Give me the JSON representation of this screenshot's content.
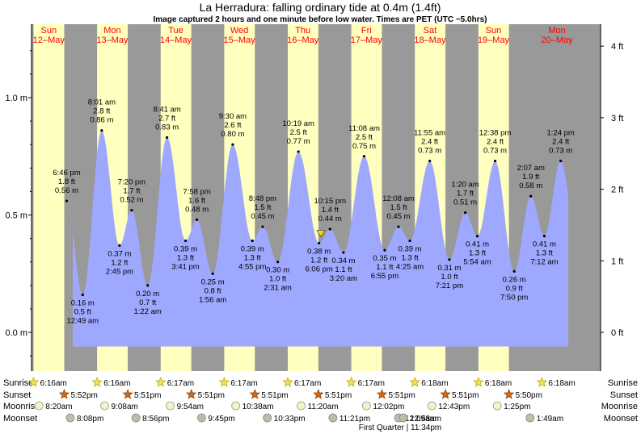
{
  "title": "La Herradura: falling  ordinary tide at 0.4m (1.4ft)",
  "subtitle": "Image captured 2 hours and one minute before low water. Times are PET (UTC −5.0hrs)",
  "colors": {
    "day": "#ffffc0",
    "night": "#999999",
    "tide": "#9fa8ff",
    "date_text": "#ff0000",
    "marker": "#f0e000"
  },
  "days": [
    {
      "name": "Sun",
      "date": "12–May"
    },
    {
      "name": "Mon",
      "date": "13–May"
    },
    {
      "name": "Tue",
      "date": "14–May"
    },
    {
      "name": "Wed",
      "date": "15–May"
    },
    {
      "name": "Thu",
      "date": "16–May"
    },
    {
      "name": "Fri",
      "date": "17–May"
    },
    {
      "name": "Sat",
      "date": "18–May"
    },
    {
      "name": "Sun",
      "date": "19–May"
    },
    {
      "name": "Mon",
      "date": "20–May"
    }
  ],
  "chart_data": {
    "type": "area",
    "x_unit": "hours from 00:00 Sun 12-May (PET)",
    "y_unit": "m",
    "xlim": [
      0,
      216
    ],
    "ylim": [
      -0.15,
      1.3
    ],
    "left_axis": {
      "ticks": [
        0.0,
        0.5,
        1.0
      ],
      "labels": [
        "0.0 m",
        "0.5 m",
        "1.0 m"
      ]
    },
    "right_axis": {
      "ticks_ft": [
        0,
        1,
        2,
        3,
        4
      ],
      "labels": [
        "0 ft",
        "1 ft",
        "2 ft",
        "3 ft",
        "4 ft"
      ]
    },
    "current_level_m": 0.4,
    "tide_events": [
      {
        "day": 0,
        "time": "6:46 pm",
        "ft": "1.8 ft",
        "m": 0.56,
        "type": "high"
      },
      {
        "day": 1,
        "time": "12:49 am",
        "ft": "0.5 ft",
        "m": 0.16,
        "type": "low"
      },
      {
        "day": 1,
        "time": "8:01 am",
        "ft": "2.8 ft",
        "m": 0.86,
        "type": "high"
      },
      {
        "day": 1,
        "time": "2:45 pm",
        "ft": "1.2 ft",
        "m": 0.37,
        "type": "low"
      },
      {
        "day": 1,
        "time": "7:20 pm",
        "ft": "1.7 ft",
        "m": 0.52,
        "type": "high"
      },
      {
        "day": 2,
        "time": "1:22 am",
        "ft": "0.7 ft",
        "m": 0.2,
        "type": "low"
      },
      {
        "day": 2,
        "time": "8:41 am",
        "ft": "2.7 ft",
        "m": 0.83,
        "type": "high"
      },
      {
        "day": 2,
        "time": "3:41 pm",
        "ft": "1.3 ft",
        "m": 0.39,
        "type": "low"
      },
      {
        "day": 2,
        "time": "7:58 pm",
        "ft": "1.6 ft",
        "m": 0.48,
        "type": "high"
      },
      {
        "day": 3,
        "time": "1:56 am",
        "ft": "0.8 ft",
        "m": 0.25,
        "type": "low"
      },
      {
        "day": 3,
        "time": "9:30 am",
        "ft": "2.6 ft",
        "m": 0.8,
        "type": "high"
      },
      {
        "day": 3,
        "time": "4:55 pm",
        "ft": "1.3 ft",
        "m": 0.39,
        "type": "low"
      },
      {
        "day": 3,
        "time": "8:48 pm",
        "ft": "1.5 ft",
        "m": 0.45,
        "type": "high"
      },
      {
        "day": 4,
        "time": "2:31 am",
        "ft": "1.0 ft",
        "m": 0.3,
        "type": "low"
      },
      {
        "day": 4,
        "time": "10:19 am",
        "ft": "2.5 ft",
        "m": 0.77,
        "type": "high"
      },
      {
        "day": 4,
        "time": "6:06 pm",
        "ft": "1.2 ft",
        "m": 0.38,
        "type": "low"
      },
      {
        "day": 4,
        "time": "10:15 pm",
        "ft": "1.4 ft",
        "m": 0.44,
        "type": "high"
      },
      {
        "day": 5,
        "time": "3:20 am",
        "ft": "1.1 ft",
        "m": 0.34,
        "type": "low"
      },
      {
        "day": 5,
        "time": "11:08 am",
        "ft": "2.5 ft",
        "m": 0.75,
        "type": "high"
      },
      {
        "day": 5,
        "time": "6:55 pm",
        "ft": "1.1 ft",
        "m": 0.35,
        "type": "low"
      },
      {
        "day": 6,
        "time": "12:08 am",
        "ft": "1.5 ft",
        "m": 0.45,
        "type": "high"
      },
      {
        "day": 6,
        "time": "4:25 am",
        "ft": "1.3 ft",
        "m": 0.39,
        "type": "low"
      },
      {
        "day": 6,
        "time": "11:55 am",
        "ft": "2.4 ft",
        "m": 0.73,
        "type": "high"
      },
      {
        "day": 6,
        "time": "7:21 pm",
        "ft": "1.0 ft",
        "m": 0.31,
        "type": "low"
      },
      {
        "day": 7,
        "time": "1:20 am",
        "ft": "1.7 ft",
        "m": 0.51,
        "type": "high"
      },
      {
        "day": 7,
        "time": "5:54 am",
        "ft": "1.3 ft",
        "m": 0.41,
        "type": "low"
      },
      {
        "day": 7,
        "time": "12:38 pm",
        "ft": "2.4 ft",
        "m": 0.73,
        "type": "high"
      },
      {
        "day": 7,
        "time": "7:50 pm",
        "ft": "0.9 ft",
        "m": 0.26,
        "type": "low"
      },
      {
        "day": 8,
        "time": "2:07 am",
        "ft": "1.9 ft",
        "m": 0.58,
        "type": "high"
      },
      {
        "day": 8,
        "time": "7:12 am",
        "ft": "1.3 ft",
        "m": 0.41,
        "type": "low"
      },
      {
        "day": 8,
        "time": "1:24 pm",
        "ft": "2.4 ft",
        "m": 0.73,
        "type": "high"
      }
    ]
  },
  "almanac": {
    "labels": [
      "Sunrise",
      "Sunset",
      "Moonrise",
      "Moonset"
    ],
    "sunrise": [
      {
        "day": 0,
        "time": "6:16am"
      },
      {
        "day": 1,
        "time": "6:16am"
      },
      {
        "day": 2,
        "time": "6:17am"
      },
      {
        "day": 3,
        "time": "6:17am"
      },
      {
        "day": 4,
        "time": "6:17am"
      },
      {
        "day": 5,
        "time": "6:17am"
      },
      {
        "day": 6,
        "time": "6:18am"
      },
      {
        "day": 7,
        "time": "6:18am"
      },
      {
        "day": 8,
        "time": "6:18am"
      }
    ],
    "sunset": [
      {
        "day": 0,
        "time": "5:52pm"
      },
      {
        "day": 1,
        "time": "5:51pm"
      },
      {
        "day": 2,
        "time": "5:51pm"
      },
      {
        "day": 3,
        "time": "5:51pm"
      },
      {
        "day": 4,
        "time": "5:51pm"
      },
      {
        "day": 5,
        "time": "5:51pm"
      },
      {
        "day": 6,
        "time": "5:51pm"
      },
      {
        "day": 7,
        "time": "5:50pm"
      }
    ],
    "moonrise": [
      {
        "day": 0,
        "time": "8:20am"
      },
      {
        "day": 1,
        "time": "9:08am"
      },
      {
        "day": 2,
        "time": "9:54am"
      },
      {
        "day": 3,
        "time": "10:38am"
      },
      {
        "day": 4,
        "time": "11:20am"
      },
      {
        "day": 5,
        "time": "12:02pm"
      },
      {
        "day": 6,
        "time": "12:43pm"
      },
      {
        "day": 7,
        "time": "1:25pm"
      }
    ],
    "moonset": [
      {
        "day": 0,
        "time": "8:08pm"
      },
      {
        "day": 1,
        "time": "8:56pm"
      },
      {
        "day": 2,
        "time": "9:45pm"
      },
      {
        "day": 3,
        "time": "10:33pm"
      },
      {
        "day": 4,
        "time": "11:21pm"
      },
      {
        "day": 6,
        "time": "12:09am"
      },
      {
        "day": 6,
        "time": "12:58am"
      },
      {
        "day": 7,
        "time": "1:49am"
      }
    ],
    "moon_phase_note": "First Quarter | 11:34pm"
  }
}
